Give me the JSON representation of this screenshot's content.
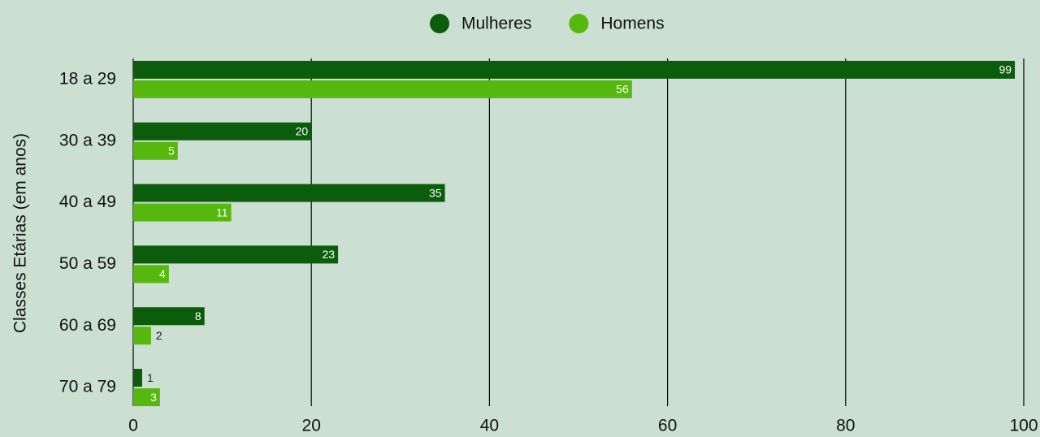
{
  "chart_data": {
    "type": "bar",
    "orientation": "horizontal",
    "ylabel": "Classes Etárias (em anos)",
    "categories": [
      "18 a 29",
      "30 a 39",
      "40 a 49",
      "50 a 59",
      "60 a 69",
      "70 a 79"
    ],
    "series": [
      {
        "name": "Mulheres",
        "color": "#0b5d0b",
        "values": [
          99,
          20,
          35,
          23,
          8,
          1
        ]
      },
      {
        "name": "Homens",
        "color": "#56b80e",
        "values": [
          56,
          5,
          11,
          4,
          2,
          3
        ]
      }
    ],
    "xlim": [
      0,
      100
    ],
    "xticks": [
      0,
      20,
      40,
      60,
      80,
      100
    ],
    "grid": true,
    "legend": "top"
  }
}
